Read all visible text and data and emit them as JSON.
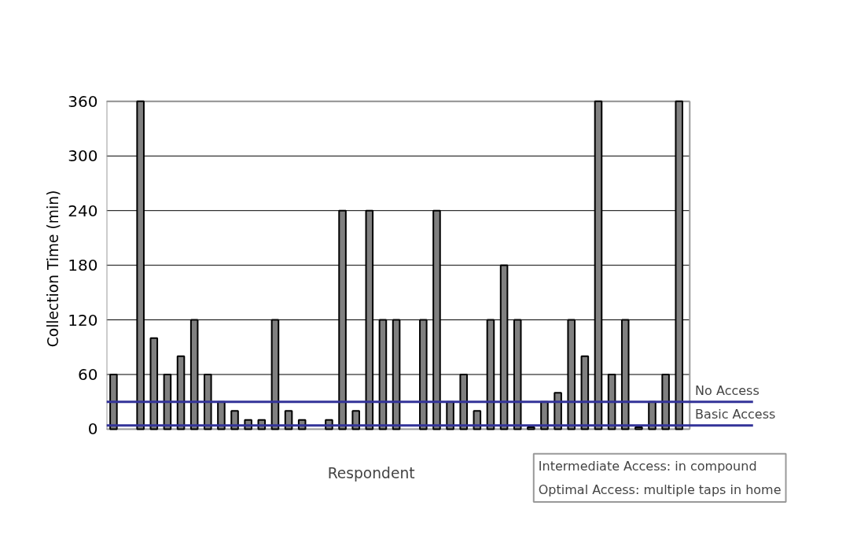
{
  "chart_data": {
    "type": "bar",
    "xlabel": "Respondent",
    "ylabel": "Collection Time (min)",
    "categories": [
      null,
      null,
      null,
      null,
      null,
      null,
      null,
      null,
      null,
      null,
      null,
      null,
      null,
      null,
      null,
      null,
      null,
      null,
      null,
      null,
      null,
      null,
      null,
      null,
      null,
      null,
      null,
      null,
      null,
      null,
      null,
      null,
      null,
      null,
      null,
      null,
      null,
      null,
      null,
      null,
      null,
      null,
      null
    ],
    "values": [
      60,
      null,
      360,
      100,
      60,
      80,
      120,
      60,
      30,
      20,
      10,
      10,
      120,
      20,
      10,
      null,
      10,
      240,
      20,
      240,
      120,
      120,
      null,
      120,
      240,
      30,
      60,
      20,
      120,
      180,
      120,
      2,
      30,
      40,
      120,
      80,
      360,
      60,
      120,
      2,
      30,
      60,
      360
    ],
    "color": "#808080",
    "ylim": [
      0,
      360
    ],
    "yticks": [
      0,
      60,
      120,
      180,
      240,
      300,
      360
    ],
    "grid": "y",
    "ref_lines": [
      {
        "axis": "y",
        "value": 30,
        "label": "No Access",
        "color": "#333399"
      },
      {
        "axis": "y",
        "value": 4,
        "label": "Basic Access",
        "color": "#333399"
      }
    ],
    "annotations": [
      "Intermediate Access: in compound\nOptimal Access: multiple taps in home"
    ]
  }
}
